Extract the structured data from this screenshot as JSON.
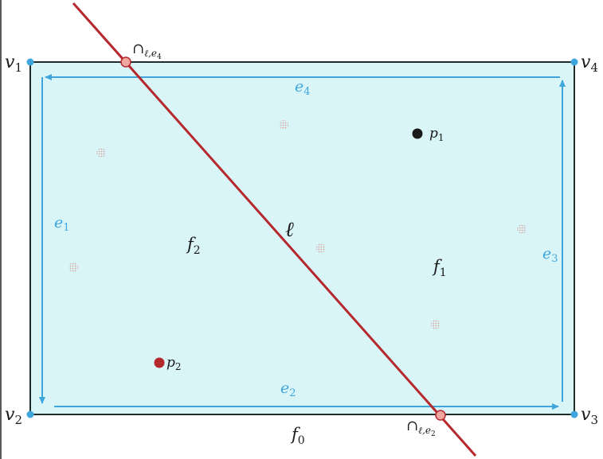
{
  "vertices": [
    {
      "base": "v",
      "sub": "1"
    },
    {
      "base": "v",
      "sub": "2"
    },
    {
      "base": "v",
      "sub": "3"
    },
    {
      "base": "v",
      "sub": "4"
    }
  ],
  "edges": [
    {
      "base": "e",
      "sub": "1"
    },
    {
      "base": "e",
      "sub": "2"
    },
    {
      "base": "e",
      "sub": "3"
    },
    {
      "base": "e",
      "sub": "4"
    }
  ],
  "faces": [
    {
      "base": "f",
      "sub": "0"
    },
    {
      "base": "f",
      "sub": "1"
    },
    {
      "base": "f",
      "sub": "2"
    }
  ],
  "points": [
    {
      "base": "p",
      "sub": "1"
    },
    {
      "base": "p",
      "sub": "2"
    }
  ],
  "line": {
    "symbol": "ℓ"
  },
  "intersections": [
    {
      "symbol": "∩",
      "sub": "ℓ,e",
      "subsub": "4"
    },
    {
      "symbol": "∩",
      "sub": "ℓ,e",
      "subsub": "2"
    }
  ],
  "colors": {
    "face_fill": "#d9f5f7",
    "edge_blue": "#3ea6dc",
    "line_red": "#b5282e",
    "point_dark": "#1a1a1a",
    "point_red": "#b5282e",
    "intersection_fill": "#f0a7a0",
    "faint_point": "#e8c8c0"
  }
}
